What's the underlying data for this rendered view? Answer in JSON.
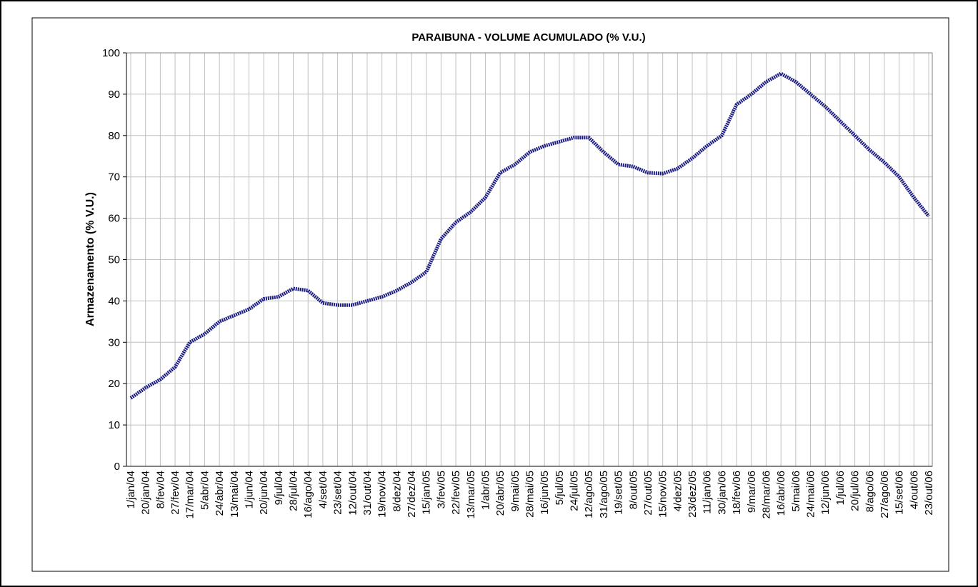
{
  "chart_data": {
    "type": "line",
    "title": "PARAIBUNA - VOLUME ACUMULADO (% V.U.)",
    "y_label": "Armazenamento (% V.U.)",
    "categories": [
      "1/jan/04",
      "20/jan/04",
      "8/fev/04",
      "27/fev/04",
      "17/mar/04",
      "5/abr/04",
      "24/abr/04",
      "13/mai/04",
      "1/jun/04",
      "20/jun/04",
      "9/jul/04",
      "28/jul/04",
      "16/ago/04",
      "4/set/04",
      "23/set/04",
      "12/out/04",
      "31/out/04",
      "19/nov/04",
      "8/dez/04",
      "27/dez/04",
      "15/jan/05",
      "3/fev/05",
      "22/fev/05",
      "13/mar/05",
      "1/abr/05",
      "20/abr/05",
      "9/mai/05",
      "28/mai/05",
      "16/jun/05",
      "5/jul/05",
      "24/jul/05",
      "12/ago/05",
      "31/ago/05",
      "19/set/05",
      "8/out/05",
      "27/out/05",
      "15/nov/05",
      "4/dez/05",
      "23/dez/05",
      "11/jan/06",
      "30/jan/06",
      "18/fev/06",
      "9/mar/06",
      "28/mar/06",
      "16/abr/06",
      "5/mai/06",
      "24/mai/06",
      "12/jun/06",
      "1/jul/06",
      "20/jul/06",
      "8/ago/06",
      "27/ago/06",
      "15/set/06",
      "4/out/06",
      "23/out/06"
    ],
    "series": [
      {
        "name": "Armazenamento",
        "color": "#1c1c85",
        "values": [
          16.5,
          19,
          21,
          24,
          30,
          32,
          35,
          36.5,
          38,
          40.5,
          41,
          43,
          42.5,
          39.5,
          39,
          39,
          40,
          41,
          42.5,
          44.5,
          47,
          55,
          59,
          61.5,
          65,
          71,
          73,
          76,
          77.5,
          78.5,
          79.5,
          79.5,
          76,
          73,
          72.5,
          71,
          70.8,
          72,
          74.5,
          77.5,
          80,
          87.5,
          90,
          93,
          95,
          93,
          90,
          87,
          83.5,
          80,
          76.5,
          73.5,
          70,
          65,
          60.5
        ]
      }
    ],
    "ylim": [
      0,
      100
    ],
    "yticks": [
      0,
      10,
      20,
      30,
      40,
      50,
      60,
      70,
      80,
      90,
      100
    ],
    "grid": true
  }
}
